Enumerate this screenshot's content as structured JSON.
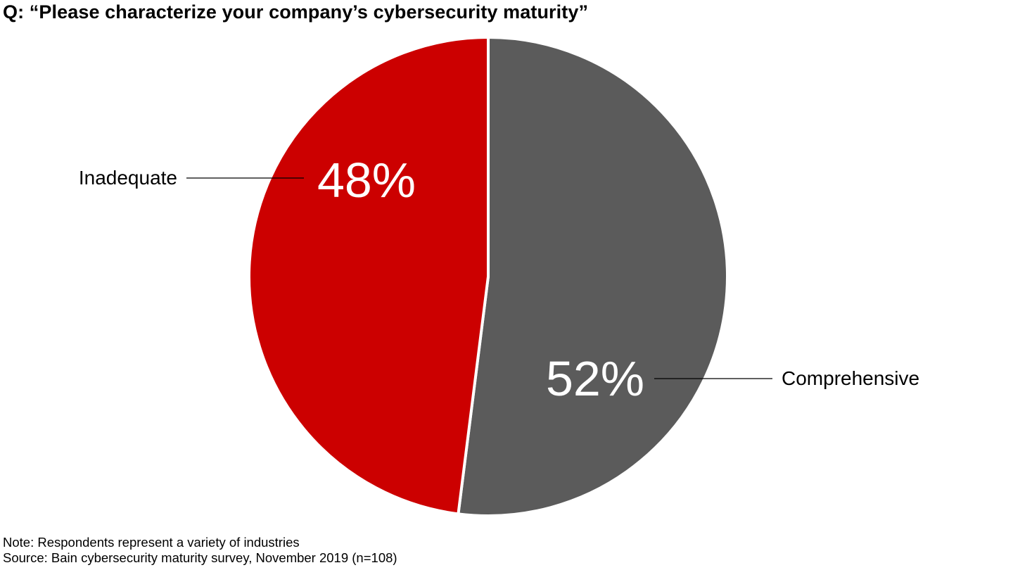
{
  "title": "Q: “Please characterize your company’s cybersecurity maturity”",
  "footer": {
    "note": "Note: Respondents represent a variety of industries",
    "source": "Source: Bain cybersecurity maturity survey, November 2019 (n=108)"
  },
  "chart_data": {
    "type": "pie",
    "title": "Q: “Please characterize your company’s cybersecurity maturity”",
    "categories": [
      "Comprehensive",
      "Inadequate"
    ],
    "values": [
      52,
      48
    ],
    "value_labels": [
      "52%",
      "48%"
    ],
    "colors": [
      "#5b5b5b",
      "#cc0000"
    ],
    "unit": "%",
    "legend": "none"
  }
}
